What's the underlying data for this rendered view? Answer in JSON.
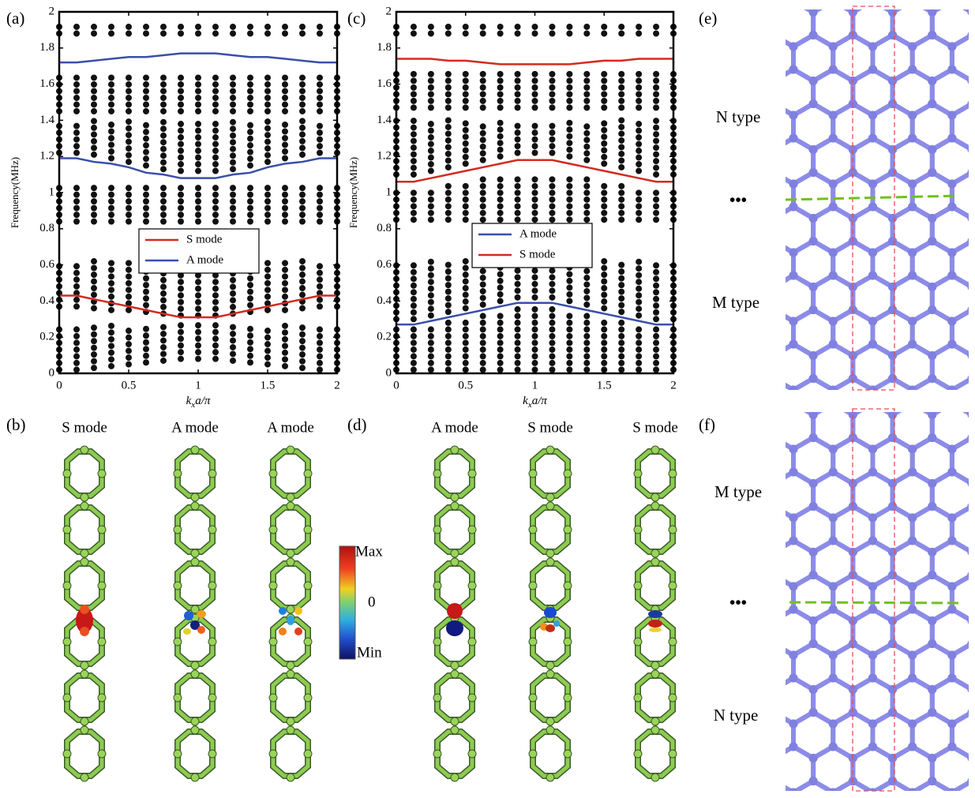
{
  "chart_data": [
    {
      "type": "line",
      "panel": "(a)",
      "ylabel": "Frequency(MHz)",
      "xlabel": [
        "k",
        "x",
        "a/π"
      ],
      "xlim": [
        0,
        2
      ],
      "ylim": [
        0,
        2
      ],
      "xticks": [
        0,
        0.5,
        1,
        1.5,
        2
      ],
      "yticks": [
        0,
        0.2,
        0.4,
        0.6,
        0.8,
        1,
        1.2,
        1.4,
        1.6,
        1.8,
        2
      ],
      "x": [
        0,
        0.125,
        0.25,
        0.375,
        0.5,
        0.625,
        0.75,
        0.875,
        1,
        1.125,
        1.25,
        1.375,
        1.5,
        1.625,
        1.75,
        1.875,
        2
      ],
      "band_color": "#111111",
      "bands": [
        {
          "lower": [
            0.02,
            0.02,
            0.03,
            0.04,
            0.05,
            0.06,
            0.07,
            0.08,
            0.08,
            0.08,
            0.07,
            0.06,
            0.05,
            0.04,
            0.03,
            0.02,
            0.02
          ],
          "upper": 0.27
        },
        {
          "lower": [
            0.37,
            0.37,
            0.36,
            0.35,
            0.35,
            0.34,
            0.33,
            0.32,
            0.32,
            0.32,
            0.33,
            0.34,
            0.35,
            0.35,
            0.36,
            0.37,
            0.37
          ],
          "upper": 0.62
        },
        {
          "lower": 0.84,
          "upper": [
            1.05,
            1.05,
            1.05,
            1.04,
            1.04,
            1.04,
            1.03,
            1.03,
            1.03,
            1.03,
            1.03,
            1.04,
            1.04,
            1.04,
            1.05,
            1.05,
            1.05
          ]
        },
        {
          "lower": [
            1.22,
            1.22,
            1.21,
            1.19,
            1.17,
            1.15,
            1.13,
            1.12,
            1.12,
            1.12,
            1.13,
            1.15,
            1.17,
            1.19,
            1.21,
            1.22,
            1.22
          ],
          "upper": 1.4
        },
        {
          "lower": 1.45,
          "upper": 1.65
        },
        {
          "lower": 1.88,
          "upper": 1.95
        }
      ],
      "series": [
        {
          "name": "S mode",
          "color": "#d42a20",
          "curves": [
            [
              0.43,
              0.43,
              0.41,
              0.39,
              0.37,
              0.35,
              0.33,
              0.31,
              0.31,
              0.31,
              0.33,
              0.35,
              0.37,
              0.39,
              0.41,
              0.43,
              0.43
            ]
          ]
        },
        {
          "name": "A mode",
          "color": "#3a4fa8",
          "curves": [
            [
              1.72,
              1.72,
              1.73,
              1.74,
              1.75,
              1.75,
              1.76,
              1.77,
              1.77,
              1.77,
              1.76,
              1.75,
              1.75,
              1.74,
              1.73,
              1.72,
              1.72
            ],
            [
              1.19,
              1.19,
              1.17,
              1.16,
              1.14,
              1.11,
              1.1,
              1.08,
              1.08,
              1.08,
              1.1,
              1.11,
              1.14,
              1.16,
              1.17,
              1.19,
              1.19
            ]
          ]
        }
      ],
      "legend": "center"
    },
    {
      "type": "line",
      "panel": "(c)",
      "ylabel": "Frequency(MHz)",
      "xlabel": [
        "k",
        "x",
        "a/π"
      ],
      "xlim": [
        0,
        2
      ],
      "ylim": [
        0,
        2
      ],
      "xticks": [
        0,
        0.5,
        1,
        1.5,
        2
      ],
      "yticks": [
        0,
        0.2,
        0.4,
        0.6,
        0.8,
        1,
        1.2,
        1.4,
        1.6,
        1.8,
        2
      ],
      "x": [
        0,
        0.125,
        0.25,
        0.375,
        0.5,
        0.625,
        0.75,
        0.875,
        1,
        1.125,
        1.25,
        1.375,
        1.5,
        1.625,
        1.75,
        1.875,
        2
      ],
      "band_color": "#111111",
      "bands": [
        {
          "lower": 0.02,
          "upper": [
            0.26,
            0.26,
            0.27,
            0.29,
            0.31,
            0.33,
            0.35,
            0.36,
            0.36,
            0.36,
            0.35,
            0.33,
            0.31,
            0.29,
            0.27,
            0.26,
            0.26
          ]
        },
        {
          "lower": [
            0.3,
            0.3,
            0.32,
            0.34,
            0.36,
            0.38,
            0.4,
            0.42,
            0.42,
            0.42,
            0.4,
            0.38,
            0.36,
            0.34,
            0.32,
            0.3,
            0.3
          ],
          "upper": 0.62
        },
        {
          "lower": 0.85,
          "upper": [
            1.02,
            1.02,
            1.03,
            1.04,
            1.06,
            1.08,
            1.09,
            1.1,
            1.1,
            1.1,
            1.09,
            1.08,
            1.06,
            1.04,
            1.03,
            1.02,
            1.02
          ]
        },
        {
          "lower": [
            1.1,
            1.1,
            1.12,
            1.14,
            1.16,
            1.18,
            1.2,
            1.22,
            1.22,
            1.22,
            1.2,
            1.18,
            1.16,
            1.14,
            1.12,
            1.1,
            1.1
          ],
          "upper": 1.4
        },
        {
          "lower": 1.47,
          "upper": 1.66
        },
        {
          "lower": 1.88,
          "upper": 1.95
        }
      ],
      "series": [
        {
          "name": "A mode",
          "color": "#3a4fa8",
          "curves": [
            [
              0.27,
              0.27,
              0.29,
              0.31,
              0.33,
              0.35,
              0.37,
              0.39,
              0.39,
              0.39,
              0.37,
              0.35,
              0.33,
              0.31,
              0.29,
              0.27,
              0.27
            ]
          ]
        },
        {
          "name": "S mode",
          "color": "#d42a20",
          "curves": [
            [
              1.74,
              1.74,
              1.74,
              1.73,
              1.73,
              1.72,
              1.71,
              1.71,
              1.71,
              1.71,
              1.71,
              1.72,
              1.73,
              1.73,
              1.74,
              1.74,
              1.74
            ],
            [
              1.06,
              1.06,
              1.08,
              1.1,
              1.12,
              1.14,
              1.16,
              1.18,
              1.18,
              1.18,
              1.16,
              1.14,
              1.12,
              1.1,
              1.08,
              1.06,
              1.06
            ]
          ]
        }
      ],
      "legend": "center"
    }
  ],
  "mode_panels": [
    {
      "label": "(b)",
      "modes": [
        "S mode",
        "A mode",
        "A mode"
      ]
    },
    {
      "label": "(d)",
      "modes": [
        "A mode",
        "S mode",
        "S mode"
      ]
    }
  ],
  "colorbar": {
    "max": "Max",
    "zero": "0",
    "min": "Min"
  },
  "lattice_panels": [
    {
      "label": "(e)",
      "top": "N type",
      "ellipsis": "•••",
      "bottom": "M type"
    },
    {
      "label": "(f)",
      "top": "M type",
      "ellipsis": "•••",
      "bottom": "N type"
    }
  ]
}
